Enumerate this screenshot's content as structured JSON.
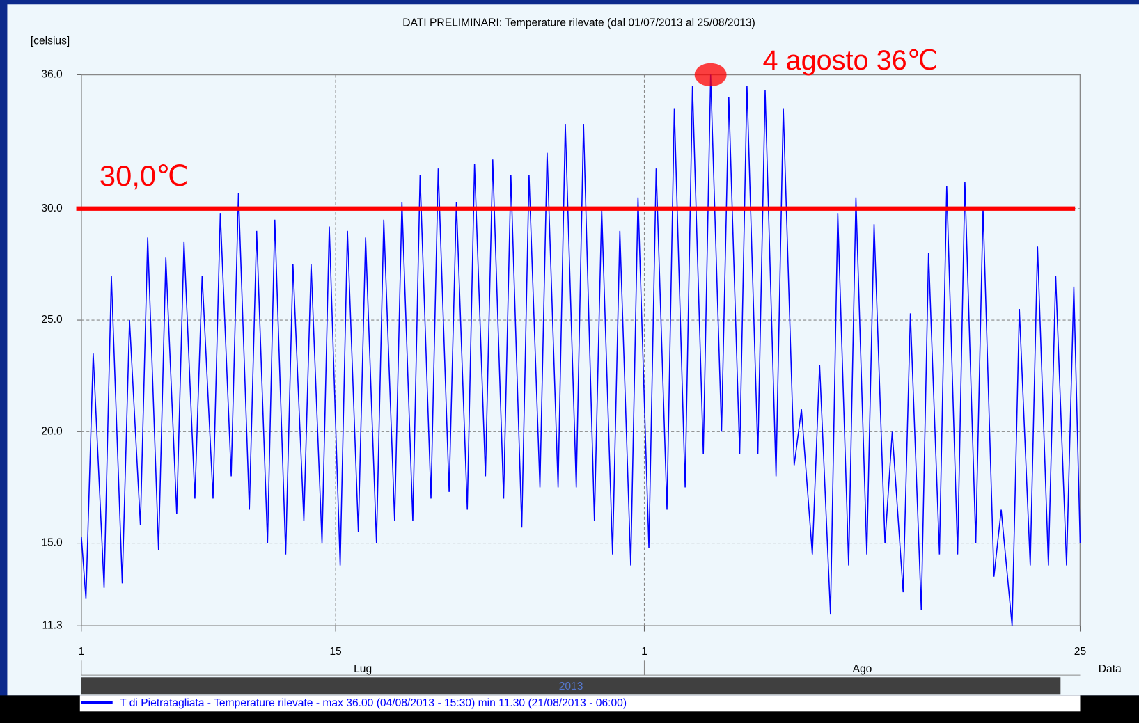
{
  "chart_data": {
    "type": "line",
    "title": "DATI PRELIMINARI: Temperature rilevate (dal 01/07/2013 al 25/08/2013)",
    "y_label": "[celsius]",
    "x_label": "Data",
    "month_labels": [
      "Lug",
      "Ago"
    ],
    "year_label": "2013",
    "xlim": [
      0,
      55
    ],
    "xticks": [
      {
        "value": 0,
        "label": "1"
      },
      {
        "value": 14,
        "label": "15"
      },
      {
        "value": 31,
        "label": "1"
      },
      {
        "value": 55,
        "label": "25"
      }
    ],
    "ylim": [
      11.3,
      36
    ],
    "yticks": [
      11.3,
      {
        "value": 15,
        "label": "15.0"
      },
      {
        "value": 20,
        "label": "20.0"
      },
      {
        "value": 25,
        "label": "25.0"
      },
      {
        "value": 30,
        "label": "30.0"
      },
      {
        "value": 36,
        "label": "36.0"
      }
    ],
    "grid": true,
    "series": [
      {
        "name": "T di Pietratagliata - Temperature rilevate - max 36.00 (04/08/2013 - 15:30) min 11.30 (21/08/2013 - 06:00)",
        "color": "#0000ff",
        "x": [
          0,
          0.25,
          0.65,
          1.25,
          1.65,
          2.25,
          2.65,
          3.25,
          3.65,
          4.25,
          4.65,
          5.25,
          5.65,
          6.25,
          6.65,
          7.25,
          7.65,
          8.25,
          8.65,
          9.25,
          9.65,
          10.25,
          10.65,
          11.25,
          11.65,
          12.25,
          12.65,
          13.25,
          13.65,
          14.25,
          14.65,
          15.25,
          15.65,
          16.25,
          16.65,
          17.25,
          17.65,
          18.25,
          18.65,
          19.25,
          19.65,
          20.25,
          20.65,
          21.25,
          21.65,
          22.25,
          22.65,
          23.25,
          23.65,
          24.25,
          24.65,
          25.25,
          25.65,
          26.25,
          26.65,
          27.25,
          27.65,
          28.25,
          28.65,
          29.25,
          29.65,
          30.25,
          30.65,
          31.25,
          31.65,
          32.25,
          32.65,
          33.25,
          33.65,
          34.25,
          34.65,
          35.25,
          35.65,
          36.25,
          36.65,
          37.25,
          37.65,
          38.25,
          38.65,
          39.25,
          39.65,
          40.25,
          40.65,
          41.25,
          41.65,
          42.25,
          42.65,
          43.25,
          43.65,
          44.25,
          44.65,
          45.25,
          45.65,
          46.25,
          46.65,
          47.25,
          47.65,
          48.25,
          48.65,
          49.25,
          49.65,
          50.25,
          50.65,
          51.25,
          51.65,
          52.25,
          52.65,
          53.25,
          53.65,
          54.25,
          54.65,
          55
        ],
        "values": [
          15.3,
          12.5,
          23.5,
          13,
          27,
          13.2,
          25,
          15.8,
          28.7,
          14.7,
          27.8,
          16.3,
          28.5,
          17,
          27,
          17,
          29.8,
          18,
          30.7,
          16.5,
          29,
          15,
          29.5,
          14.5,
          27.5,
          16,
          27.5,
          15,
          29.2,
          14,
          29,
          15.5,
          28.7,
          15,
          29.5,
          16,
          30.3,
          16,
          31.5,
          17,
          31.8,
          17.3,
          30.3,
          16.5,
          32,
          18,
          32.2,
          17,
          31.5,
          15.7,
          31.5,
          17.5,
          32.5,
          17.5,
          33.8,
          17.5,
          33.8,
          16,
          30,
          14.5,
          29,
          14,
          30.5,
          14.8,
          31.8,
          16.5,
          34.5,
          17.5,
          35.5,
          19,
          36,
          20,
          35,
          19,
          35.5,
          19,
          35.3,
          18,
          34.5,
          18.5,
          21,
          14.5,
          23,
          11.8,
          29.8,
          14,
          30.5,
          14.5,
          29.3,
          15,
          20,
          12.8,
          25.3,
          12,
          28,
          14.5,
          31,
          14.5,
          31.2,
          15,
          30,
          13.5,
          16.5,
          11.3,
          25.5,
          14,
          28.3,
          14,
          27,
          14,
          26.5,
          15
        ]
      }
    ],
    "reference_line": {
      "value": 30,
      "label": "30,0℃",
      "color": "#ff0000"
    },
    "highlight": {
      "x": 34.65,
      "y": 36,
      "label": "4 agosto 36℃",
      "color": "#ff0000"
    }
  }
}
